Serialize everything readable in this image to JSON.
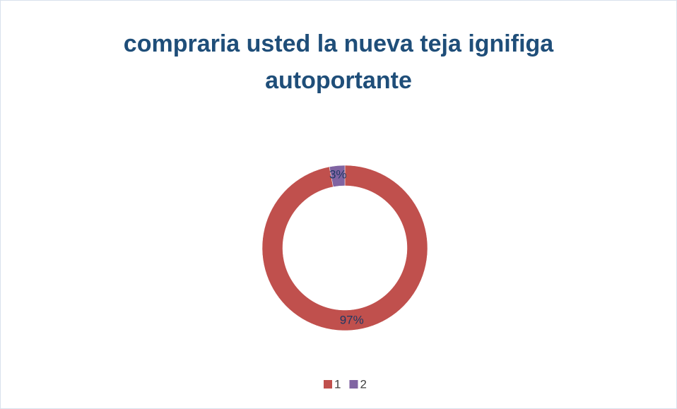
{
  "chart_data": {
    "type": "donut",
    "title": "compraria usted la nueva teja ignifiga autoportante",
    "categories": [
      "1",
      "2"
    ],
    "values": [
      97,
      3
    ],
    "value_labels": [
      "97%",
      "3%"
    ],
    "colors": [
      "#c0504d",
      "#8064a2"
    ],
    "legend": "bottom"
  }
}
